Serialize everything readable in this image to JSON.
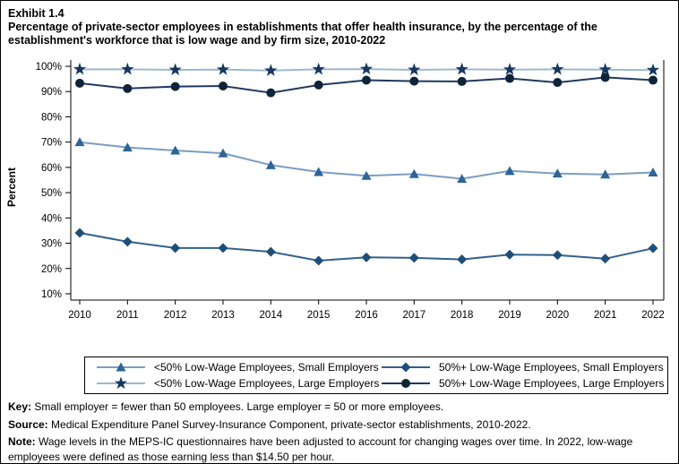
{
  "header": {
    "exhibit_label": "Exhibit 1.4",
    "title": "Percentage of private-sector employees in establishments that offer health insurance, by the percentage of the establishment's workforce that is low wage and by firm size,  2010-2022"
  },
  "chart_data": {
    "type": "line",
    "x": [
      2010,
      2011,
      2012,
      2013,
      2014,
      2015,
      2016,
      2017,
      2018,
      2019,
      2020,
      2021,
      2022
    ],
    "xlabel": "",
    "ylabel": "Percent",
    "ylim": [
      7.5,
      102.5
    ],
    "yticks": [
      10,
      20,
      30,
      40,
      50,
      60,
      70,
      80,
      90,
      100
    ],
    "ytick_suffix": "%",
    "grid": false,
    "legend_position": "bottom-box",
    "series": [
      {
        "name": "<50% Low-Wage Employees, Small Employers",
        "marker": "triangle",
        "marker_color": "#2E6496",
        "line_color": "#7B9DC1",
        "values": [
          70.0,
          67.9,
          66.7,
          65.6,
          60.9,
          58.2,
          56.7,
          57.4,
          55.5,
          58.6,
          57.6,
          57.2,
          58.0
        ]
      },
      {
        "name": "50%+ Low-Wage Employees, Small Employers",
        "marker": "diamond",
        "marker_color": "#1F4E79",
        "line_color": "#31618C",
        "values": [
          34.1,
          30.6,
          28.1,
          28.1,
          26.6,
          23.1,
          24.4,
          24.2,
          23.6,
          25.5,
          25.3,
          23.9,
          28.0
        ]
      },
      {
        "name": "<50% Low-Wage Employees, Large Employers",
        "marker": "star",
        "marker_color": "#17375E",
        "line_color": "#9DB7D2",
        "values": [
          98.8,
          98.8,
          98.6,
          98.7,
          98.3,
          98.8,
          98.9,
          98.6,
          98.8,
          98.7,
          98.8,
          98.7,
          98.5
        ]
      },
      {
        "name": "50%+ Low-Wage Employees, Large Employers",
        "marker": "circle",
        "marker_color": "#0E2439",
        "line_color": "#1F3A5F",
        "values": [
          93.3,
          91.2,
          92.0,
          92.2,
          89.5,
          92.6,
          94.5,
          94.1,
          94.0,
          95.2,
          93.6,
          95.6,
          94.5
        ]
      }
    ]
  },
  "footer": {
    "key_label": "Key:",
    "key_text": " Small employer = fewer than 50 employees. Large employer = 50 or more employees.",
    "source_label": "Source:",
    "source_text": " Medical Expenditure Panel Survey-Insurance Component, private-sector establishments, 2010-2022.",
    "note_label": "Note:",
    "note_text": " Wage levels in the MEPS-IC questionnaires have been adjusted to account for changing wages over time. In 2022, low-wage employees were defined as those earning less than $14.50 per hour."
  }
}
